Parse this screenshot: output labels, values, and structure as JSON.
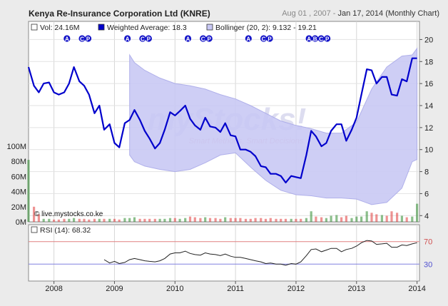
{
  "header": {
    "title": "Kenya Re-Insurance Corporation Ltd (KNRE)",
    "date_start": "Aug 01 , 2007",
    "date_sep": " - ",
    "date_end": "Jan 17, 2014",
    "period": "(Monthly Chart)"
  },
  "colors": {
    "price_line": "#0000cc",
    "bollinger_fill": "#c9c9f5",
    "bollinger_edge": "#a8a8e8",
    "vol_up": "#2e8b2e",
    "vol_down": "#e03a3a",
    "rsi_line": "#222222",
    "rsi_70": "#e08080",
    "rsi_30": "#8080e0",
    "event_marker": "#1515c8",
    "panel_bg": "#ffffff",
    "page_bg": "#ebebeb"
  },
  "chart_data": {
    "type": "line",
    "legend": [
      {
        "key": "vol",
        "text": "Vol: 24.16M"
      },
      {
        "key": "wavg",
        "text": "Weighted Average: 18.3"
      },
      {
        "key": "boll",
        "text": "Bollinger (20, 2): 9.132 - 19.21"
      }
    ],
    "x_ticks": [
      "2008",
      "2009",
      "2010",
      "2011",
      "2012",
      "2013",
      "2014"
    ],
    "y_ticks_price": [
      "4",
      "6",
      "8",
      "10",
      "12",
      "14",
      "16",
      "18",
      "20"
    ],
    "y_ticks_volume": [
      "0M",
      "20M",
      "40M",
      "60M",
      "80M",
      "100M"
    ],
    "ylim_price": [
      3.5,
      21
    ],
    "ylim_volume": [
      0,
      100
    ],
    "watermark": "myStocks!",
    "watermark_sub": "Smart Methods, Smart Decisions",
    "copyright": "© live.mystocks.co.ke",
    "events": [
      {
        "x": 2008.25,
        "labels": [
          "A"
        ]
      },
      {
        "x": 2008.5,
        "labels": [
          "C",
          "P"
        ]
      },
      {
        "x": 2009.25,
        "labels": [
          "A"
        ]
      },
      {
        "x": 2009.5,
        "labels": [
          "C",
          "P"
        ]
      },
      {
        "x": 2010.25,
        "labels": [
          "A"
        ]
      },
      {
        "x": 2010.5,
        "labels": [
          "C",
          "P"
        ]
      },
      {
        "x": 2011.25,
        "labels": [
          "A"
        ]
      },
      {
        "x": 2011.5,
        "labels": [
          "C",
          "P"
        ]
      },
      {
        "x": 2012.25,
        "labels": [
          "A",
          "B",
          "C",
          "P"
        ]
      }
    ],
    "price_series": {
      "name": "Weighted Average",
      "x": [
        2007.58,
        2007.67,
        2007.75,
        2007.83,
        2007.92,
        2008.0,
        2008.08,
        2008.17,
        2008.25,
        2008.33,
        2008.42,
        2008.5,
        2008.58,
        2008.67,
        2008.75,
        2008.83,
        2008.92,
        2009.0,
        2009.08,
        2009.17,
        2009.25,
        2009.33,
        2009.42,
        2009.5,
        2009.58,
        2009.67,
        2009.75,
        2009.83,
        2009.92,
        2010.0,
        2010.08,
        2010.17,
        2010.25,
        2010.33,
        2010.42,
        2010.5,
        2010.58,
        2010.67,
        2010.75,
        2010.83,
        2010.92,
        2011.0,
        2011.08,
        2011.17,
        2011.25,
        2011.33,
        2011.42,
        2011.5,
        2011.58,
        2011.67,
        2011.75,
        2011.83,
        2011.92,
        2012.0,
        2012.08,
        2012.17,
        2012.25,
        2012.33,
        2012.42,
        2012.5,
        2012.58,
        2012.67,
        2012.75,
        2012.83,
        2012.92,
        2013.0,
        2013.08,
        2013.17,
        2013.25,
        2013.33,
        2013.42,
        2013.5,
        2013.58,
        2013.67,
        2013.75,
        2013.83,
        2013.92,
        2014.0
      ],
      "y": [
        17.5,
        15.8,
        15.2,
        16.0,
        16.1,
        15.2,
        15.0,
        15.2,
        16.0,
        17.5,
        16.2,
        15.8,
        15.0,
        13.3,
        14.0,
        11.8,
        12.3,
        10.6,
        10.2,
        12.4,
        12.7,
        13.6,
        12.7,
        11.7,
        11.0,
        10.1,
        10.6,
        11.8,
        13.4,
        13.1,
        13.5,
        14.0,
        12.8,
        12.2,
        11.8,
        12.9,
        12.1,
        12.0,
        11.6,
        12.4,
        11.3,
        11.2,
        10.0,
        10.0,
        9.8,
        9.4,
        8.5,
        8.4,
        7.8,
        7.8,
        7.6,
        7.0,
        7.6,
        7.5,
        7.4,
        9.5,
        11.7,
        11.2,
        10.3,
        10.6,
        11.7,
        12.3,
        12.3,
        10.8,
        11.8,
        12.9,
        15.0,
        17.3,
        17.2,
        16.0,
        16.6,
        16.6,
        15.0,
        14.9,
        16.4,
        16.2,
        18.3,
        18.3
      ]
    },
    "bollinger": {
      "x": [
        2009.25,
        2009.33,
        2009.5,
        2009.75,
        2010.0,
        2010.25,
        2010.5,
        2010.75,
        2011.0,
        2011.25,
        2011.5,
        2011.75,
        2012.0,
        2012.25,
        2012.5,
        2012.75,
        2013.0,
        2013.25,
        2013.5,
        2013.75,
        2013.92,
        2014.0
      ],
      "upper": [
        18.6,
        17.9,
        17.2,
        16.5,
        16.0,
        15.8,
        15.5,
        15.0,
        14.6,
        14.0,
        13.3,
        12.6,
        12.2,
        11.9,
        11.5,
        11.5,
        12.5,
        15.5,
        17.5,
        18.5,
        18.6,
        19.2
      ],
      "lower": [
        9.5,
        8.9,
        8.5,
        8.2,
        8.0,
        8.2,
        8.8,
        9.5,
        9.7,
        8.4,
        7.2,
        6.3,
        5.9,
        5.8,
        5.6,
        5.6,
        5.5,
        5.0,
        5.2,
        6.5,
        8.9,
        9.1
      ]
    },
    "volume_series": {
      "name": "Vol",
      "x": [
        2007.58,
        2007.67,
        2007.75,
        2007.83,
        2007.92,
        2008.0,
        2008.08,
        2008.17,
        2008.25,
        2008.33,
        2008.42,
        2008.5,
        2008.58,
        2008.67,
        2008.75,
        2008.83,
        2008.92,
        2009.0,
        2009.08,
        2009.17,
        2009.25,
        2009.33,
        2009.42,
        2009.5,
        2009.58,
        2009.67,
        2009.75,
        2009.83,
        2009.92,
        2010.0,
        2010.08,
        2010.17,
        2010.25,
        2010.33,
        2010.42,
        2010.5,
        2010.58,
        2010.67,
        2010.75,
        2010.83,
        2010.92,
        2011.0,
        2011.08,
        2011.17,
        2011.25,
        2011.33,
        2011.42,
        2011.5,
        2011.58,
        2011.67,
        2011.75,
        2011.83,
        2011.92,
        2012.0,
        2012.08,
        2012.17,
        2012.25,
        2012.33,
        2012.42,
        2012.5,
        2012.58,
        2012.67,
        2012.75,
        2012.83,
        2012.92,
        2013.0,
        2013.08,
        2013.17,
        2013.25,
        2013.33,
        2013.42,
        2013.5,
        2013.58,
        2013.67,
        2013.75,
        2013.83,
        2013.92,
        2014.0
      ],
      "values": [
        82,
        20,
        10,
        4,
        4,
        3,
        3,
        4,
        4,
        5,
        4,
        4,
        3,
        4,
        4,
        4,
        4,
        4,
        3,
        5,
        5,
        6,
        4,
        4,
        4,
        4,
        4,
        4,
        5,
        5,
        4,
        5,
        7,
        6,
        5,
        6,
        5,
        5,
        4,
        6,
        5,
        5,
        5,
        4,
        4,
        5,
        5,
        4,
        5,
        4,
        4,
        4,
        4,
        4,
        4,
        5,
        14,
        7,
        6,
        5,
        8,
        9,
        6,
        8,
        5,
        7,
        7,
        14,
        12,
        10,
        9,
        8,
        14,
        12,
        8,
        6,
        7,
        24
      ],
      "up": [
        true,
        false,
        false,
        true,
        true,
        false,
        false,
        false,
        true,
        true,
        false,
        false,
        false,
        false,
        true,
        false,
        true,
        false,
        false,
        true,
        true,
        true,
        false,
        false,
        false,
        false,
        true,
        true,
        true,
        false,
        true,
        true,
        false,
        false,
        false,
        true,
        false,
        false,
        false,
        true,
        false,
        false,
        false,
        false,
        false,
        false,
        false,
        false,
        false,
        false,
        false,
        false,
        true,
        false,
        false,
        true,
        true,
        false,
        false,
        true,
        true,
        true,
        false,
        false,
        true,
        true,
        true,
        true,
        false,
        false,
        true,
        false,
        false,
        false,
        true,
        false,
        true,
        true
      ]
    },
    "rsi": {
      "legend": "RSI (14): 68.32",
      "ticks": [
        "70",
        "30"
      ],
      "ylim": [
        0,
        100
      ],
      "x": [
        2008.83,
        2008.92,
        2009.0,
        2009.08,
        2009.17,
        2009.25,
        2009.33,
        2009.42,
        2009.5,
        2009.58,
        2009.67,
        2009.75,
        2009.83,
        2009.92,
        2010.0,
        2010.08,
        2010.17,
        2010.25,
        2010.33,
        2010.42,
        2010.5,
        2010.58,
        2010.67,
        2010.75,
        2010.83,
        2010.92,
        2011.0,
        2011.08,
        2011.17,
        2011.25,
        2011.33,
        2011.42,
        2011.5,
        2011.58,
        2011.67,
        2011.75,
        2011.83,
        2011.92,
        2012.0,
        2012.08,
        2012.17,
        2012.25,
        2012.33,
        2012.42,
        2012.5,
        2012.58,
        2012.67,
        2012.75,
        2012.83,
        2012.92,
        2013.0,
        2013.08,
        2013.17,
        2013.25,
        2013.33,
        2013.42,
        2013.5,
        2013.58,
        2013.67,
        2013.75,
        2013.83,
        2013.92,
        2014.0
      ],
      "values": [
        38,
        32,
        35,
        31,
        33,
        38,
        40,
        38,
        36,
        35,
        34,
        36,
        40,
        48,
        50,
        50,
        53,
        49,
        47,
        46,
        50,
        48,
        47,
        45,
        48,
        44,
        42,
        42,
        40,
        38,
        36,
        34,
        31,
        32,
        30,
        30,
        28,
        31,
        30,
        34,
        45,
        56,
        57,
        52,
        55,
        58,
        58,
        52,
        56,
        58,
        62,
        68,
        72,
        71,
        65,
        66,
        67,
        60,
        60,
        64,
        63,
        66,
        68
      ]
    }
  }
}
